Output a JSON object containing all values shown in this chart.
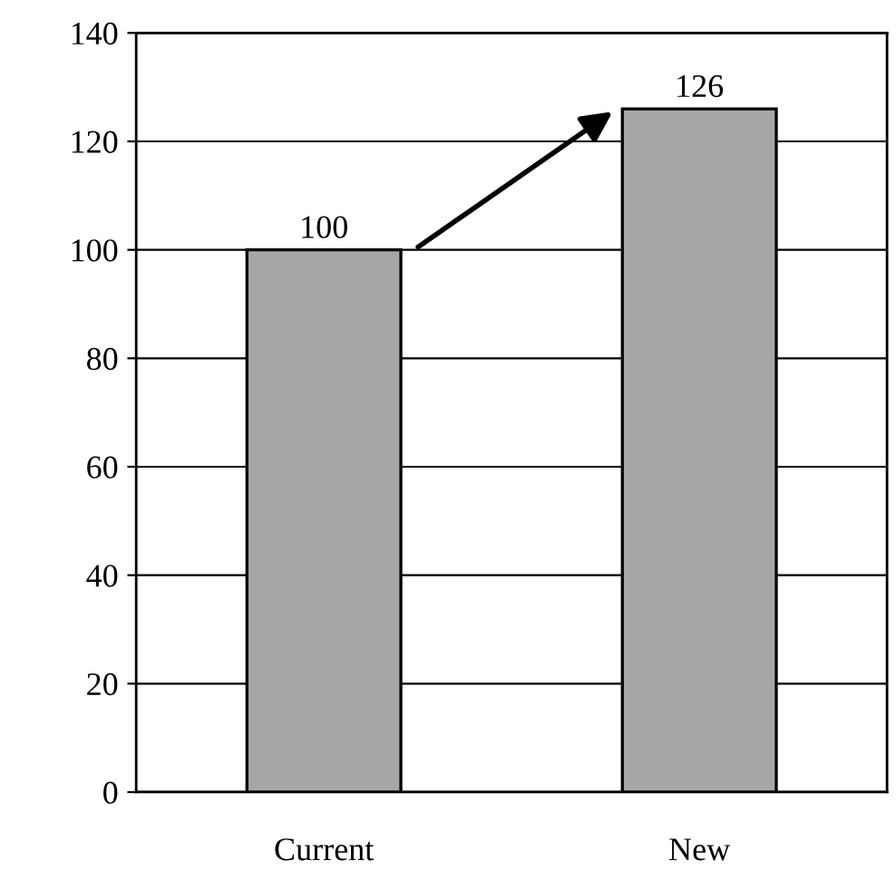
{
  "chart_data": {
    "type": "bar",
    "categories": [
      "Current",
      "New"
    ],
    "values": [
      100,
      126
    ],
    "color": "#a6a6a6",
    "ylim": [
      0,
      140
    ],
    "yticks": [
      0,
      20,
      40,
      60,
      80,
      100,
      120,
      140
    ],
    "grid": "y",
    "data_labels": true
  }
}
